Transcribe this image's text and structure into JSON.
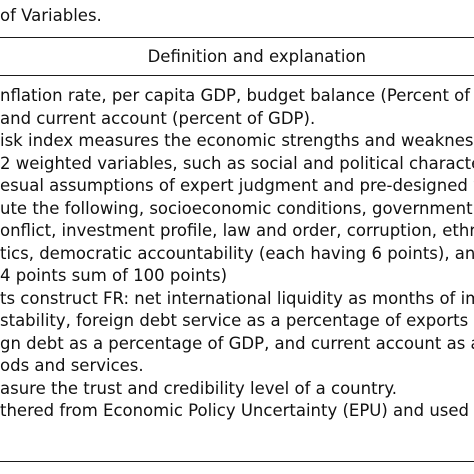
{
  "table": {
    "caption": "of Variables.",
    "column_header": "Definition and explanation",
    "lines": [
      "nflation rate, per capita GDP, budget balance (Percent of GDF",
      "and current account (percent of GDP).",
      "isk index measures the economic strengths and weaknesses c",
      "2 weighted variables, such as social and political characteristic",
      "esual assumptions of expert judgment and pre-designed weight",
      "ute the following, socioeconomic conditions, government stabi",
      "onflict, investment profile, law and order, corruption, ethnic te",
      "tics, democratic accountability (each having 6 points), and qua",
      "4 points sum of 100 points)",
      "ts construct FR: net international liquidity as months of impor",
      " stability, foreign debt service as a percentage of exports of go",
      "gn debt as a percentage of GDP, and current account as a per",
      "ods and services.",
      "asure the trust and credibility level of a country.",
      "thered from Economic Policy Uncertainty (EPU) and used as a"
    ]
  }
}
